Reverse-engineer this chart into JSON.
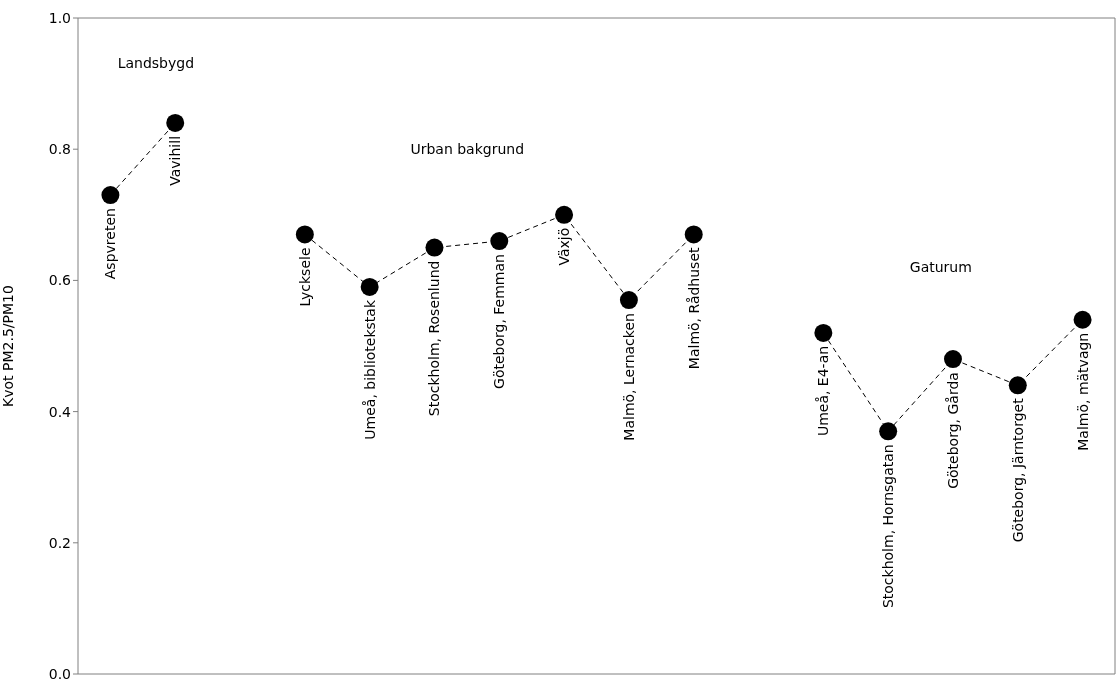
{
  "chart_data": {
    "type": "line",
    "ylabel": "Kvot PM2.5/PM10",
    "categories": [
      "Aspvreten",
      "Vavihill",
      null,
      "Lycksele",
      "Umeå, bibliotekstak",
      "Stockholm, Rosenlund",
      "Göteborg, Femman",
      "Växjö",
      "Malmö, Lernacken",
      "Malmö, Rådhuset",
      null,
      "Umeå, E4-an",
      "Stockholm, Hornsgatan",
      "Göteborg, Gårda",
      "Göteborg, Järntorget",
      "Malmö, mätvagn"
    ],
    "series": [
      {
        "color": "#000000",
        "values": [
          0.73,
          0.84,
          null,
          0.67,
          0.59,
          0.65,
          0.66,
          0.7,
          0.57,
          0.67,
          null,
          0.52,
          0.37,
          0.48,
          0.44,
          0.54
        ]
      }
    ],
    "ylim": [
      0,
      1
    ],
    "yticks": [
      {
        "value": 0,
        "label": "0.0"
      },
      {
        "value": 0.2,
        "label": "0.2"
      },
      {
        "value": 0.4,
        "label": "0.4"
      },
      {
        "value": 0.6,
        "label": "0.6"
      },
      {
        "value": 0.8,
        "label": "0.8"
      },
      {
        "value": 1,
        "label": "1.0"
      }
    ],
    "annotations": [
      "Landsbygd",
      "Urban bakgrund",
      "Gaturum"
    ],
    "tick_labels": "y",
    "grid": false,
    "legend": false,
    "marker": "circle",
    "line_style": "dashed"
  }
}
